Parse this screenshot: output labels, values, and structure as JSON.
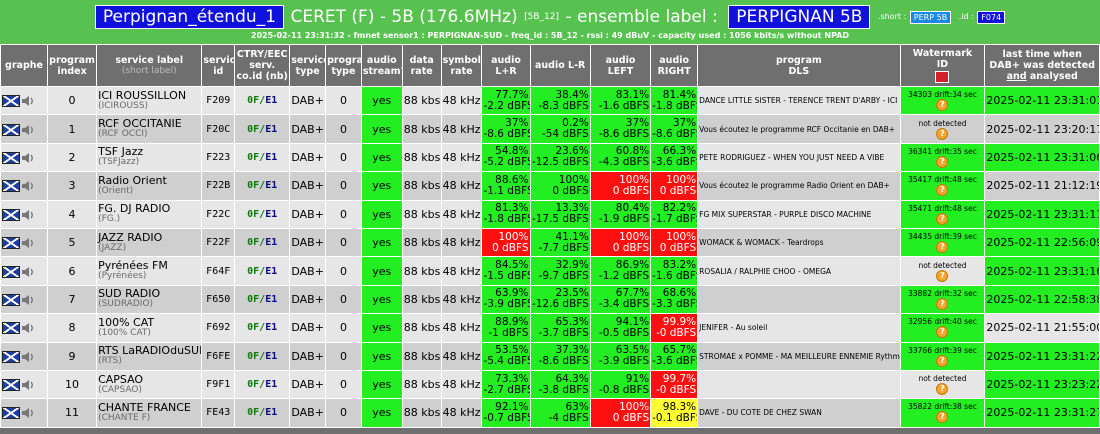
{
  "banner": {
    "ensemble_name": "Perpignan_étendu_1",
    "main_text": "CERET (F) - 5B (176.6MHz)",
    "block_code": "[5B_12]",
    "ensemble_label_prefix": "- ensemble label :",
    "ensemble_label": "PERPIGNAN 5B",
    "short_key": ".short :",
    "short_value": "PERP 5B",
    "id_key": ".id :",
    "id_value": "F074",
    "status": "2025-02-11 23:31:32 - fmnet sensor1 : PERPIGNAN-SUD - freq_id : 5B_12 - rssi : 49 dBuV - capacity used : 1056 kbits/s without NPAD"
  },
  "headers": {
    "graph": "graphe",
    "program_index": "program index",
    "service_label": "service label",
    "service_label_sub": "(short label)",
    "service_id": "service id",
    "ctry": "CTRY/EEC serv. co.id (nb)",
    "service_type": "service type",
    "program_type": "program type",
    "audio_stream": "audio stream?",
    "data_rate": "data rate",
    "symbol_rate": "symbol rate",
    "audio_lr_plus": "audio L+R",
    "audio_lr_minus": "audio L-R",
    "audio_left": "audio LEFT",
    "audio_right": "audio RIGHT",
    "program_dls_1": "program",
    "program_dls_2": "DLS",
    "watermark_1": "Watermark",
    "watermark_2": "ID",
    "last_time_1": "last time when",
    "last_time_2": "DAB+ was detected",
    "last_time_and": "and",
    "last_time_3": "analysed"
  },
  "colors": {
    "banner": "#57c24f",
    "level_ok": "#22ee22",
    "level_clip": "#ff1010",
    "level_warn": "#ffff33",
    "header": "#6f6f6f"
  },
  "rows": [
    {
      "index": "0",
      "label": "ICI ROUSSILLON",
      "short": "(ICIROUSS)",
      "sid": "F209",
      "ctry": "0F",
      "ecc": "E1",
      "stype": "DAB+",
      "ptype": "0",
      "stream": "yes",
      "rate": "88 kbs",
      "symbol": "48 kHz",
      "lrp": {
        "p": "77.7%",
        "d": "-2.2 dBFS",
        "s": "g"
      },
      "lrm": {
        "p": "38.4%",
        "d": "-8.3 dBFS",
        "s": "g"
      },
      "left": {
        "p": "83.1%",
        "d": "-1.6 dBFS",
        "s": "g"
      },
      "right": {
        "p": "81.4%",
        "d": "-1.8 dBFS",
        "s": "g"
      },
      "dls": "DANCE LITTLE SISTER - TERENCE TRENT D'ARBY - ICI ROUSSILLON",
      "wm": "34303 drift:34 sec",
      "wm_ok": true,
      "time": "2025-02-11 23:31:01",
      "time_ok": true
    },
    {
      "index": "1",
      "label": "RCF OCCITANIE",
      "short": "(RCF OCCI)",
      "sid": "F20C",
      "ctry": "0F",
      "ecc": "E1",
      "stype": "DAB+",
      "ptype": "0",
      "stream": "yes",
      "rate": "88 kbs",
      "symbol": "48 kHz",
      "lrp": {
        "p": "37%",
        "d": "-8.6 dBFS",
        "s": "g"
      },
      "lrm": {
        "p": "0.2%",
        "d": "-54 dBFS",
        "s": "g"
      },
      "left": {
        "p": "37%",
        "d": "-8.6 dBFS",
        "s": "g"
      },
      "right": {
        "p": "37%",
        "d": "-8.6 dBFS",
        "s": "g"
      },
      "dls": "Vous écoutez le programme RCF Occitanie en DAB+",
      "wm": "not detected",
      "wm_ok": false,
      "time": "2025-02-11 23:20:17",
      "time_ok": false
    },
    {
      "index": "2",
      "label": "TSF Jazz",
      "short": "(TSFJazz)",
      "sid": "F223",
      "ctry": "0F",
      "ecc": "E1",
      "stype": "DAB+",
      "ptype": "0",
      "stream": "yes",
      "rate": "88 kbs",
      "symbol": "48 kHz",
      "lrp": {
        "p": "54.8%",
        "d": "-5.2 dBFS",
        "s": "g"
      },
      "lrm": {
        "p": "23.6%",
        "d": "-12.5 dBFS",
        "s": "g"
      },
      "left": {
        "p": "60.8%",
        "d": "-4.3 dBFS",
        "s": "g"
      },
      "right": {
        "p": "66.3%",
        "d": "-3.6 dBFS",
        "s": "g"
      },
      "dls": "PETE RODRIGUEZ - WHEN YOU JUST NEED A VIBE",
      "wm": "36341 drift:35 sec",
      "wm_ok": true,
      "time": "2025-02-11 23:31:06",
      "time_ok": true
    },
    {
      "index": "3",
      "label": "Radio Orient",
      "short": "(Orient)",
      "sid": "F22B",
      "ctry": "0F",
      "ecc": "E1",
      "stype": "DAB+",
      "ptype": "0",
      "stream": "yes",
      "rate": "88 kbs",
      "symbol": "48 kHz",
      "lrp": {
        "p": "88.6%",
        "d": "-1.1 dBFS",
        "s": "g"
      },
      "lrm": {
        "p": "100%",
        "d": "0 dBFS",
        "s": "g"
      },
      "left": {
        "p": "100%",
        "d": "0 dBFS",
        "s": "r"
      },
      "right": {
        "p": "100%",
        "d": "0 dBFS",
        "s": "r"
      },
      "dls": "Vous écoutez le programme Radio Orient en DAB+",
      "wm": "35417 drift:48 sec",
      "wm_ok": true,
      "time": "2025-02-11 21:12:19",
      "time_ok": false
    },
    {
      "index": "4",
      "label": "FG. DJ RADIO",
      "short": "(FG.)",
      "sid": "F22C",
      "ctry": "0F",
      "ecc": "E1",
      "stype": "DAB+",
      "ptype": "0",
      "stream": "yes",
      "rate": "88 kbs",
      "symbol": "48 kHz",
      "lrp": {
        "p": "81.3%",
        "d": "-1.8 dBFS",
        "s": "g"
      },
      "lrm": {
        "p": "13.3%",
        "d": "-17.5 dBFS",
        "s": "g"
      },
      "left": {
        "p": "80.4%",
        "d": "-1.9 dBFS",
        "s": "g"
      },
      "right": {
        "p": "82.2%",
        "d": "-1.7 dBFS",
        "s": "g"
      },
      "dls": "FG MIX SUPERSTAR - PURPLE DISCO MACHINE",
      "wm": "35471 drift:48 sec",
      "wm_ok": true,
      "time": "2025-02-11 23:31:11",
      "time_ok": true
    },
    {
      "index": "5",
      "label": "JAZZ RADIO",
      "short": "(JAZZ)",
      "sid": "F22F",
      "ctry": "0F",
      "ecc": "E1",
      "stype": "DAB+",
      "ptype": "0",
      "stream": "yes",
      "rate": "88 kbs",
      "symbol": "48 kHz",
      "lrp": {
        "p": "100%",
        "d": "0 dBFS",
        "s": "r"
      },
      "lrm": {
        "p": "41.1%",
        "d": "-7.7 dBFS",
        "s": "g"
      },
      "left": {
        "p": "100%",
        "d": "0 dBFS",
        "s": "r"
      },
      "right": {
        "p": "100%",
        "d": "0 dBFS",
        "s": "r"
      },
      "dls": "WOMACK & WOMACK - Teardrops",
      "wm": "34435 drift:39 sec",
      "wm_ok": true,
      "time": "2025-02-11 22:56:09",
      "time_ok": true
    },
    {
      "index": "6",
      "label": "Pyrénées FM",
      "short": "(Pyrénées)",
      "sid": "F64F",
      "ctry": "0F",
      "ecc": "E1",
      "stype": "DAB+",
      "ptype": "0",
      "stream": "yes",
      "rate": "88 kbs",
      "symbol": "48 kHz",
      "lrp": {
        "p": "84.5%",
        "d": "-1.5 dBFS",
        "s": "g"
      },
      "lrm": {
        "p": "32.9%",
        "d": "-9.7 dBFS",
        "s": "g"
      },
      "left": {
        "p": "86.9%",
        "d": "-1.2 dBFS",
        "s": "g"
      },
      "right": {
        "p": "83.2%",
        "d": "-1.6 dBFS",
        "s": "g"
      },
      "dls": "ROSALIA / RALPHIE CHOO - OMEGA",
      "wm": "not detected",
      "wm_ok": false,
      "time": "2025-02-11 23:31:16",
      "time_ok": true
    },
    {
      "index": "7",
      "label": "SUD RADIO",
      "short": "(SUDRADIO)",
      "sid": "F650",
      "ctry": "0F",
      "ecc": "E1",
      "stype": "DAB+",
      "ptype": "0",
      "stream": "yes",
      "rate": "88 kbs",
      "symbol": "48 kHz",
      "lrp": {
        "p": "63.9%",
        "d": "-3.9 dBFS",
        "s": "g"
      },
      "lrm": {
        "p": "23.5%",
        "d": "-12.6 dBFS",
        "s": "g"
      },
      "left": {
        "p": "67.7%",
        "d": "-3.4 dBFS",
        "s": "g"
      },
      "right": {
        "p": "68.6%",
        "d": "-3.3 dBFS",
        "s": "g"
      },
      "dls": "",
      "wm": "33882 drift:32 sec",
      "wm_ok": true,
      "time": "2025-02-11 22:58:38",
      "time_ok": true
    },
    {
      "index": "8",
      "label": "100% CAT",
      "short": "(100% CAT)",
      "sid": "F692",
      "ctry": "0F",
      "ecc": "E1",
      "stype": "DAB+",
      "ptype": "0",
      "stream": "yes",
      "rate": "88 kbs",
      "symbol": "48 kHz",
      "lrp": {
        "p": "88.9%",
        "d": "-1 dBFS",
        "s": "g"
      },
      "lrm": {
        "p": "65.3%",
        "d": "-3.7 dBFS",
        "s": "g"
      },
      "left": {
        "p": "94.1%",
        "d": "-0.5 dBFS",
        "s": "g"
      },
      "right": {
        "p": "99.9%",
        "d": "-0 dBFS",
        "s": "r"
      },
      "dls": "JENIFER - Au soleil",
      "wm": "32956 drift:40 sec",
      "wm_ok": true,
      "time": "2025-02-11 21:55:00",
      "time_ok": false
    },
    {
      "index": "9",
      "label": "RTS LaRADIOduSUD",
      "short": "(RTS)",
      "sid": "F6FE",
      "ctry": "0F",
      "ecc": "E1",
      "stype": "DAB+",
      "ptype": "0",
      "stream": "yes",
      "rate": "88 kbs",
      "symbol": "48 kHz",
      "lrp": {
        "p": "53.5%",
        "d": "-5.4 dBFS",
        "s": "g"
      },
      "lrm": {
        "p": "37.3%",
        "d": "-8.6 dBFS",
        "s": "g"
      },
      "left": {
        "p": "63.5%",
        "d": "-3.9 dBFS",
        "s": "g"
      },
      "right": {
        "p": "65.7%",
        "d": "-3.6 dBFS",
        "s": "g"
      },
      "dls": "STROMAE x POMME - MA MEILLEURE ENNEMIE Rythme le sud à Perpignan",
      "wm": "33766 drift:39 sec",
      "wm_ok": true,
      "time": "2025-02-11 23:31:22",
      "time_ok": true
    },
    {
      "index": "10",
      "label": "CAPSAO",
      "short": "(CAPSAO)",
      "sid": "F9F1",
      "ctry": "0F",
      "ecc": "E1",
      "stype": "DAB+",
      "ptype": "0",
      "stream": "yes",
      "rate": "88 kbs",
      "symbol": "48 kHz",
      "lrp": {
        "p": "73.3%",
        "d": "-2.7 dBFS",
        "s": "g"
      },
      "lrm": {
        "p": "64.3%",
        "d": "-3.8 dBFS",
        "s": "g"
      },
      "left": {
        "p": "91%",
        "d": "-0.8 dBFS",
        "s": "g"
      },
      "right": {
        "p": "99.7%",
        "d": "-0 dBFS",
        "s": "r"
      },
      "dls": "",
      "wm": "not detected",
      "wm_ok": false,
      "time": "2025-02-11 23:23:22",
      "time_ok": true
    },
    {
      "index": "11",
      "label": "CHANTE FRANCE",
      "short": "(CHANTE F)",
      "sid": "FE43",
      "ctry": "0F",
      "ecc": "E1",
      "stype": "DAB+",
      "ptype": "0",
      "stream": "yes",
      "rate": "88 kbs",
      "symbol": "48 kHz",
      "lrp": {
        "p": "92.1%",
        "d": "-0.7 dBFS",
        "s": "g"
      },
      "lrm": {
        "p": "63%",
        "d": "-4 dBFS",
        "s": "g"
      },
      "left": {
        "p": "100%",
        "d": "0 dBFS",
        "s": "r"
      },
      "right": {
        "p": "98.3%",
        "d": "-0.1 dBFS",
        "s": "y"
      },
      "dls": "DAVE - DU COTE DE CHEZ SWAN",
      "wm": "35822 drift:38 sec",
      "wm_ok": true,
      "time": "2025-02-11 23:31:27",
      "time_ok": true
    }
  ]
}
